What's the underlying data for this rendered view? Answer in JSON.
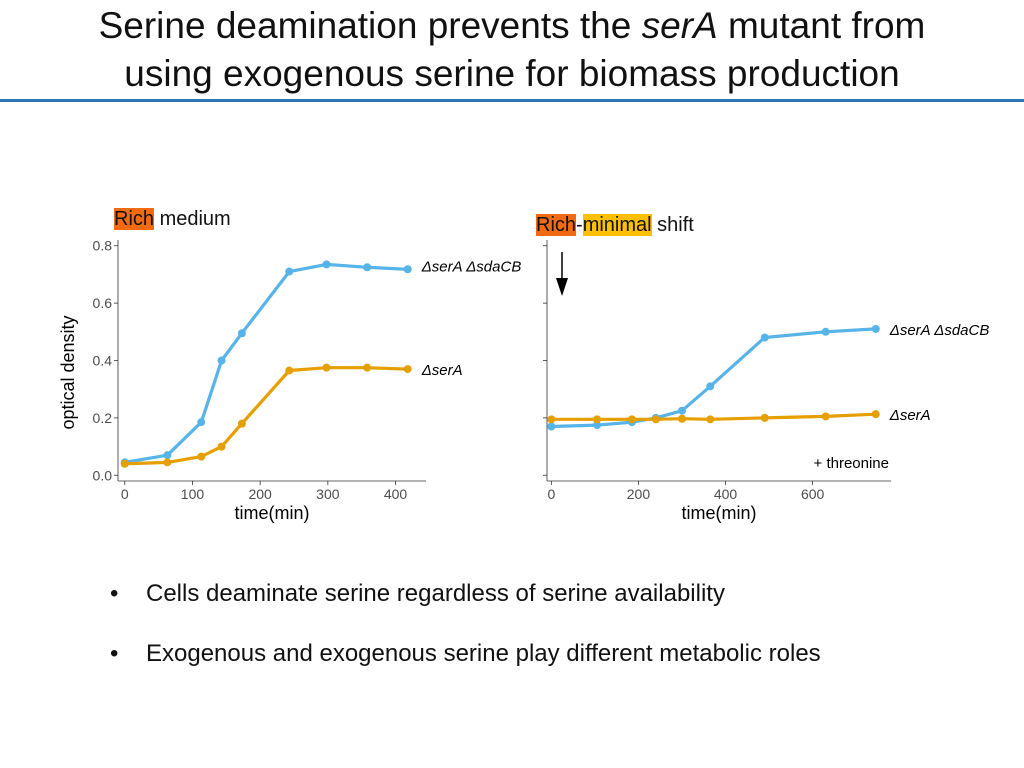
{
  "slide": {
    "title_line1_pre": "Serine deamination prevents the ",
    "title_line1_italic": "serA",
    "title_line1_post": " mutant from",
    "title_line2": "using exogenous serine for biomass production",
    "accent_color": "#2e75b6"
  },
  "panels": {
    "left_label": {
      "highlight": "Rich",
      "rest": " medium"
    },
    "right_label": {
      "part1": "Rich",
      "sep": "-",
      "part2": "minimal",
      "rest": " shift"
    },
    "highlight_colors": {
      "orange": "#f26b12",
      "yellow": "#ffc000"
    }
  },
  "chart_data": [
    {
      "type": "line",
      "title": "Rich medium",
      "xlabel": "time(min)",
      "ylabel": "optical density",
      "xlim": [
        -10,
        445
      ],
      "ylim": [
        -0.02,
        0.82
      ],
      "xticks": [
        0,
        100,
        200,
        300,
        400
      ],
      "yticks": [
        0.0,
        0.2,
        0.4,
        0.6,
        0.8
      ],
      "ytick_labels": [
        "0.0",
        "0.2",
        "0.4",
        "0.6",
        "0.8"
      ],
      "grid": false,
      "series": [
        {
          "name": "ΔserA ΔsdaCB",
          "color": "#56b4e9",
          "x": [
            0,
            63,
            113,
            143,
            173,
            243,
            298,
            358,
            418
          ],
          "y": [
            0.045,
            0.07,
            0.185,
            0.4,
            0.495,
            0.71,
            0.735,
            0.725,
            0.718
          ]
        },
        {
          "name": "ΔserA",
          "color": "#e69f00",
          "x": [
            0,
            63,
            113,
            143,
            173,
            243,
            298,
            358,
            418
          ],
          "y": [
            0.04,
            0.045,
            0.065,
            0.1,
            0.18,
            0.365,
            0.375,
            0.375,
            0.37
          ]
        }
      ]
    },
    {
      "type": "line",
      "title": "Rich-minimal shift",
      "xlabel": "time(min)",
      "ylabel": "",
      "xlim": [
        -10,
        780
      ],
      "ylim": [
        -0.02,
        0.82
      ],
      "xticks": [
        0,
        200,
        400,
        600
      ],
      "yticks": [
        0.0,
        0.2,
        0.4,
        0.6,
        0.8
      ],
      "ytick_labels": [
        "",
        "",
        "",
        "",
        ""
      ],
      "grid": false,
      "annotation": "+ threonine",
      "series": [
        {
          "name": "ΔserA ΔsdaCB",
          "color": "#56b4e9",
          "x": [
            0,
            105,
            185,
            240,
            300,
            365,
            490,
            630,
            745
          ],
          "y": [
            0.17,
            0.175,
            0.185,
            0.2,
            0.225,
            0.31,
            0.48,
            0.5,
            0.51
          ]
        },
        {
          "name": "ΔserA",
          "color": "#e69f00",
          "x": [
            0,
            105,
            185,
            240,
            300,
            365,
            490,
            630,
            745
          ],
          "y": [
            0.195,
            0.195,
            0.195,
            0.195,
            0.197,
            0.195,
            0.2,
            0.205,
            0.213
          ]
        }
      ]
    }
  ],
  "bullets": [
    "Cells deaminate serine regardless of serine availability",
    "Exogenous and exogenous serine play different metabolic roles"
  ],
  "bullet_glyph": "•"
}
